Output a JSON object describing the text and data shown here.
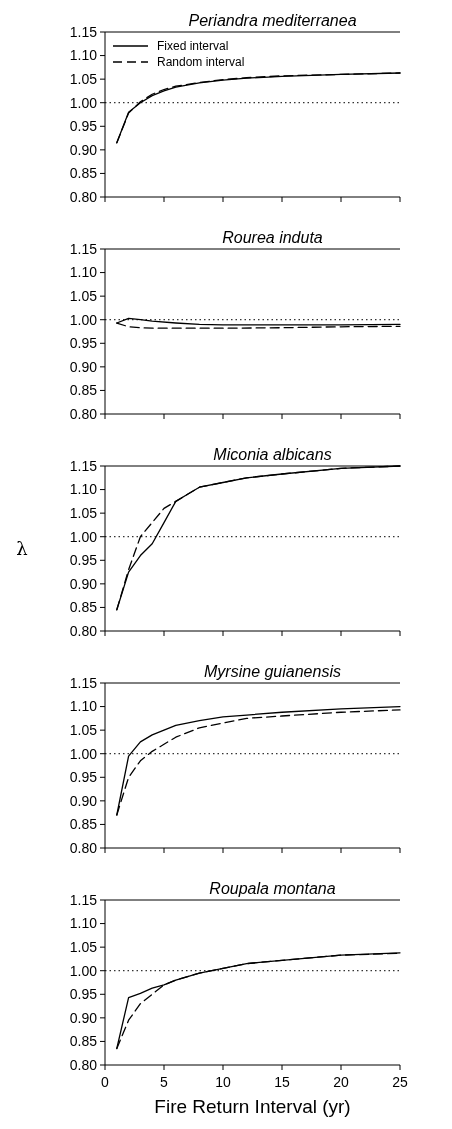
{
  "chart_data": [
    {
      "type": "line",
      "title": "Periandra mediterranea",
      "x": [
        1,
        2,
        3,
        4,
        5,
        6,
        8,
        10,
        12,
        15,
        20,
        25
      ],
      "xlim": [
        0,
        25
      ],
      "xticks": [
        0,
        5,
        10,
        15,
        20,
        25
      ],
      "ylim": [
        0.8,
        1.15
      ],
      "yticks": [
        {
          "value": 0.8,
          "label": "0.80"
        },
        0.85,
        {
          "value": 0.9,
          "label": "0.90"
        },
        0.95,
        {
          "value": 1,
          "label": "1.00"
        },
        1.05,
        {
          "value": 1.1,
          "label": "1.10"
        },
        1.15
      ],
      "tick_labels": "y",
      "legend": "top left",
      "ref_lines": [
        {
          "axis": "y",
          "value": 1,
          "line_style": "dotted"
        }
      ],
      "series": [
        {
          "name": "Fixed interval",
          "color": "#000000",
          "line_style": "solid",
          "values": [
            0.915,
            0.98,
            1.0,
            1.015,
            1.025,
            1.033,
            1.042,
            1.048,
            1.052,
            1.056,
            1.06,
            1.063
          ]
        },
        {
          "name": "Random interval",
          "color": "#000000",
          "line_style": "dashed",
          "values": [
            0.915,
            0.978,
            1.002,
            1.018,
            1.028,
            1.035,
            1.043,
            1.049,
            1.053,
            1.057,
            1.06,
            1.063
          ]
        }
      ]
    },
    {
      "type": "line",
      "title": "Rourea induta",
      "x": [
        1,
        2,
        3,
        4,
        6,
        8,
        10,
        15,
        20,
        25
      ],
      "xlim": [
        0,
        25
      ],
      "xticks": [
        0,
        5,
        10,
        15,
        20,
        25
      ],
      "ylim": [
        0.8,
        1.15
      ],
      "yticks": [
        {
          "value": 0.8,
          "label": "0.80"
        },
        0.85,
        {
          "value": 0.9,
          "label": "0.90"
        },
        0.95,
        {
          "value": 1,
          "label": "1.00"
        },
        1.05,
        {
          "value": 1.1,
          "label": "1.10"
        },
        1.15
      ],
      "tick_labels": "y",
      "ref_lines": [
        {
          "axis": "y",
          "value": 1,
          "line_style": "dotted"
        }
      ],
      "series": [
        {
          "color": "#000000",
          "line_style": "solid",
          "values": [
            0.993,
            1.003,
            1.0,
            0.997,
            0.993,
            0.99,
            0.989,
            0.989,
            0.989,
            0.99
          ]
        },
        {
          "color": "#000000",
          "line_style": "dashed",
          "values": [
            0.993,
            0.985,
            0.983,
            0.982,
            0.982,
            0.982,
            0.982,
            0.983,
            0.985,
            0.986
          ]
        }
      ]
    },
    {
      "type": "line",
      "title": "Miconia albicans",
      "ylabel": "λ",
      "x": [
        1,
        2,
        3,
        4,
        5,
        6,
        7,
        8,
        10,
        12,
        15,
        20,
        25
      ],
      "xlim": [
        0,
        25
      ],
      "xticks": [
        0,
        5,
        10,
        15,
        20,
        25
      ],
      "ylim": [
        0.8,
        1.15
      ],
      "yticks": [
        {
          "value": 0.8,
          "label": "0.80"
        },
        0.85,
        {
          "value": 0.9,
          "label": "0.90"
        },
        0.95,
        {
          "value": 1,
          "label": "1.00"
        },
        1.05,
        {
          "value": 1.1,
          "label": "1.10"
        },
        1.15
      ],
      "tick_labels": "y",
      "ref_lines": [
        {
          "axis": "y",
          "value": 1,
          "line_style": "dotted"
        }
      ],
      "series": [
        {
          "color": "#000000",
          "line_style": "solid",
          "values": [
            0.845,
            0.925,
            0.96,
            0.985,
            1.03,
            1.075,
            1.09,
            1.105,
            1.115,
            1.125,
            1.133,
            1.145,
            1.15
          ]
        },
        {
          "color": "#000000",
          "line_style": "dashed",
          "values": [
            0.845,
            0.93,
            1.0,
            1.03,
            1.06,
            1.075,
            1.09,
            1.105,
            1.115,
            1.125,
            1.133,
            1.145,
            1.15
          ]
        }
      ]
    },
    {
      "type": "line",
      "title": "Myrsine guianensis",
      "x": [
        1,
        2,
        3,
        4,
        5,
        6,
        8,
        10,
        12,
        15,
        20,
        25
      ],
      "xlim": [
        0,
        25
      ],
      "xticks": [
        0,
        5,
        10,
        15,
        20,
        25
      ],
      "ylim": [
        0.8,
        1.15
      ],
      "yticks": [
        {
          "value": 0.8,
          "label": "0.80"
        },
        0.85,
        {
          "value": 0.9,
          "label": "0.90"
        },
        0.95,
        {
          "value": 1,
          "label": "1.00"
        },
        1.05,
        {
          "value": 1.1,
          "label": "1.10"
        },
        1.15
      ],
      "tick_labels": "y",
      "ref_lines": [
        {
          "axis": "y",
          "value": 1,
          "line_style": "dotted"
        }
      ],
      "series": [
        {
          "color": "#000000",
          "line_style": "solid",
          "values": [
            0.87,
            0.995,
            1.025,
            1.04,
            1.05,
            1.06,
            1.07,
            1.078,
            1.082,
            1.088,
            1.095,
            1.1
          ]
        },
        {
          "color": "#000000",
          "line_style": "dashed",
          "values": [
            0.87,
            0.95,
            0.985,
            1.005,
            1.02,
            1.035,
            1.055,
            1.065,
            1.075,
            1.08,
            1.088,
            1.093
          ]
        }
      ]
    },
    {
      "type": "line",
      "title": "Roupala montana",
      "xlabel": "Fire Return Interval (yr)",
      "x": [
        1,
        2,
        3,
        4,
        5,
        6,
        8,
        10,
        12,
        15,
        20,
        25
      ],
      "xlim": [
        0,
        25
      ],
      "xticks": [
        0,
        5,
        10,
        15,
        20,
        25
      ],
      "ylim": [
        0.8,
        1.15
      ],
      "yticks": [
        {
          "value": 0.8,
          "label": "0.80"
        },
        0.85,
        {
          "value": 0.9,
          "label": "0.90"
        },
        0.95,
        {
          "value": 1,
          "label": "1.00"
        },
        1.05,
        {
          "value": 1.1,
          "label": "1.10"
        },
        1.15
      ],
      "ref_lines": [
        {
          "axis": "y",
          "value": 1,
          "line_style": "dotted"
        }
      ],
      "series": [
        {
          "color": "#000000",
          "line_style": "solid",
          "values": [
            0.835,
            0.943,
            0.952,
            0.963,
            0.97,
            0.98,
            0.995,
            1.005,
            1.015,
            1.022,
            1.033,
            1.038
          ]
        },
        {
          "color": "#000000",
          "line_style": "dashed",
          "values": [
            0.835,
            0.895,
            0.93,
            0.95,
            0.97,
            0.98,
            0.995,
            1.005,
            1.015,
            1.022,
            1.033,
            1.037
          ]
        }
      ]
    }
  ]
}
